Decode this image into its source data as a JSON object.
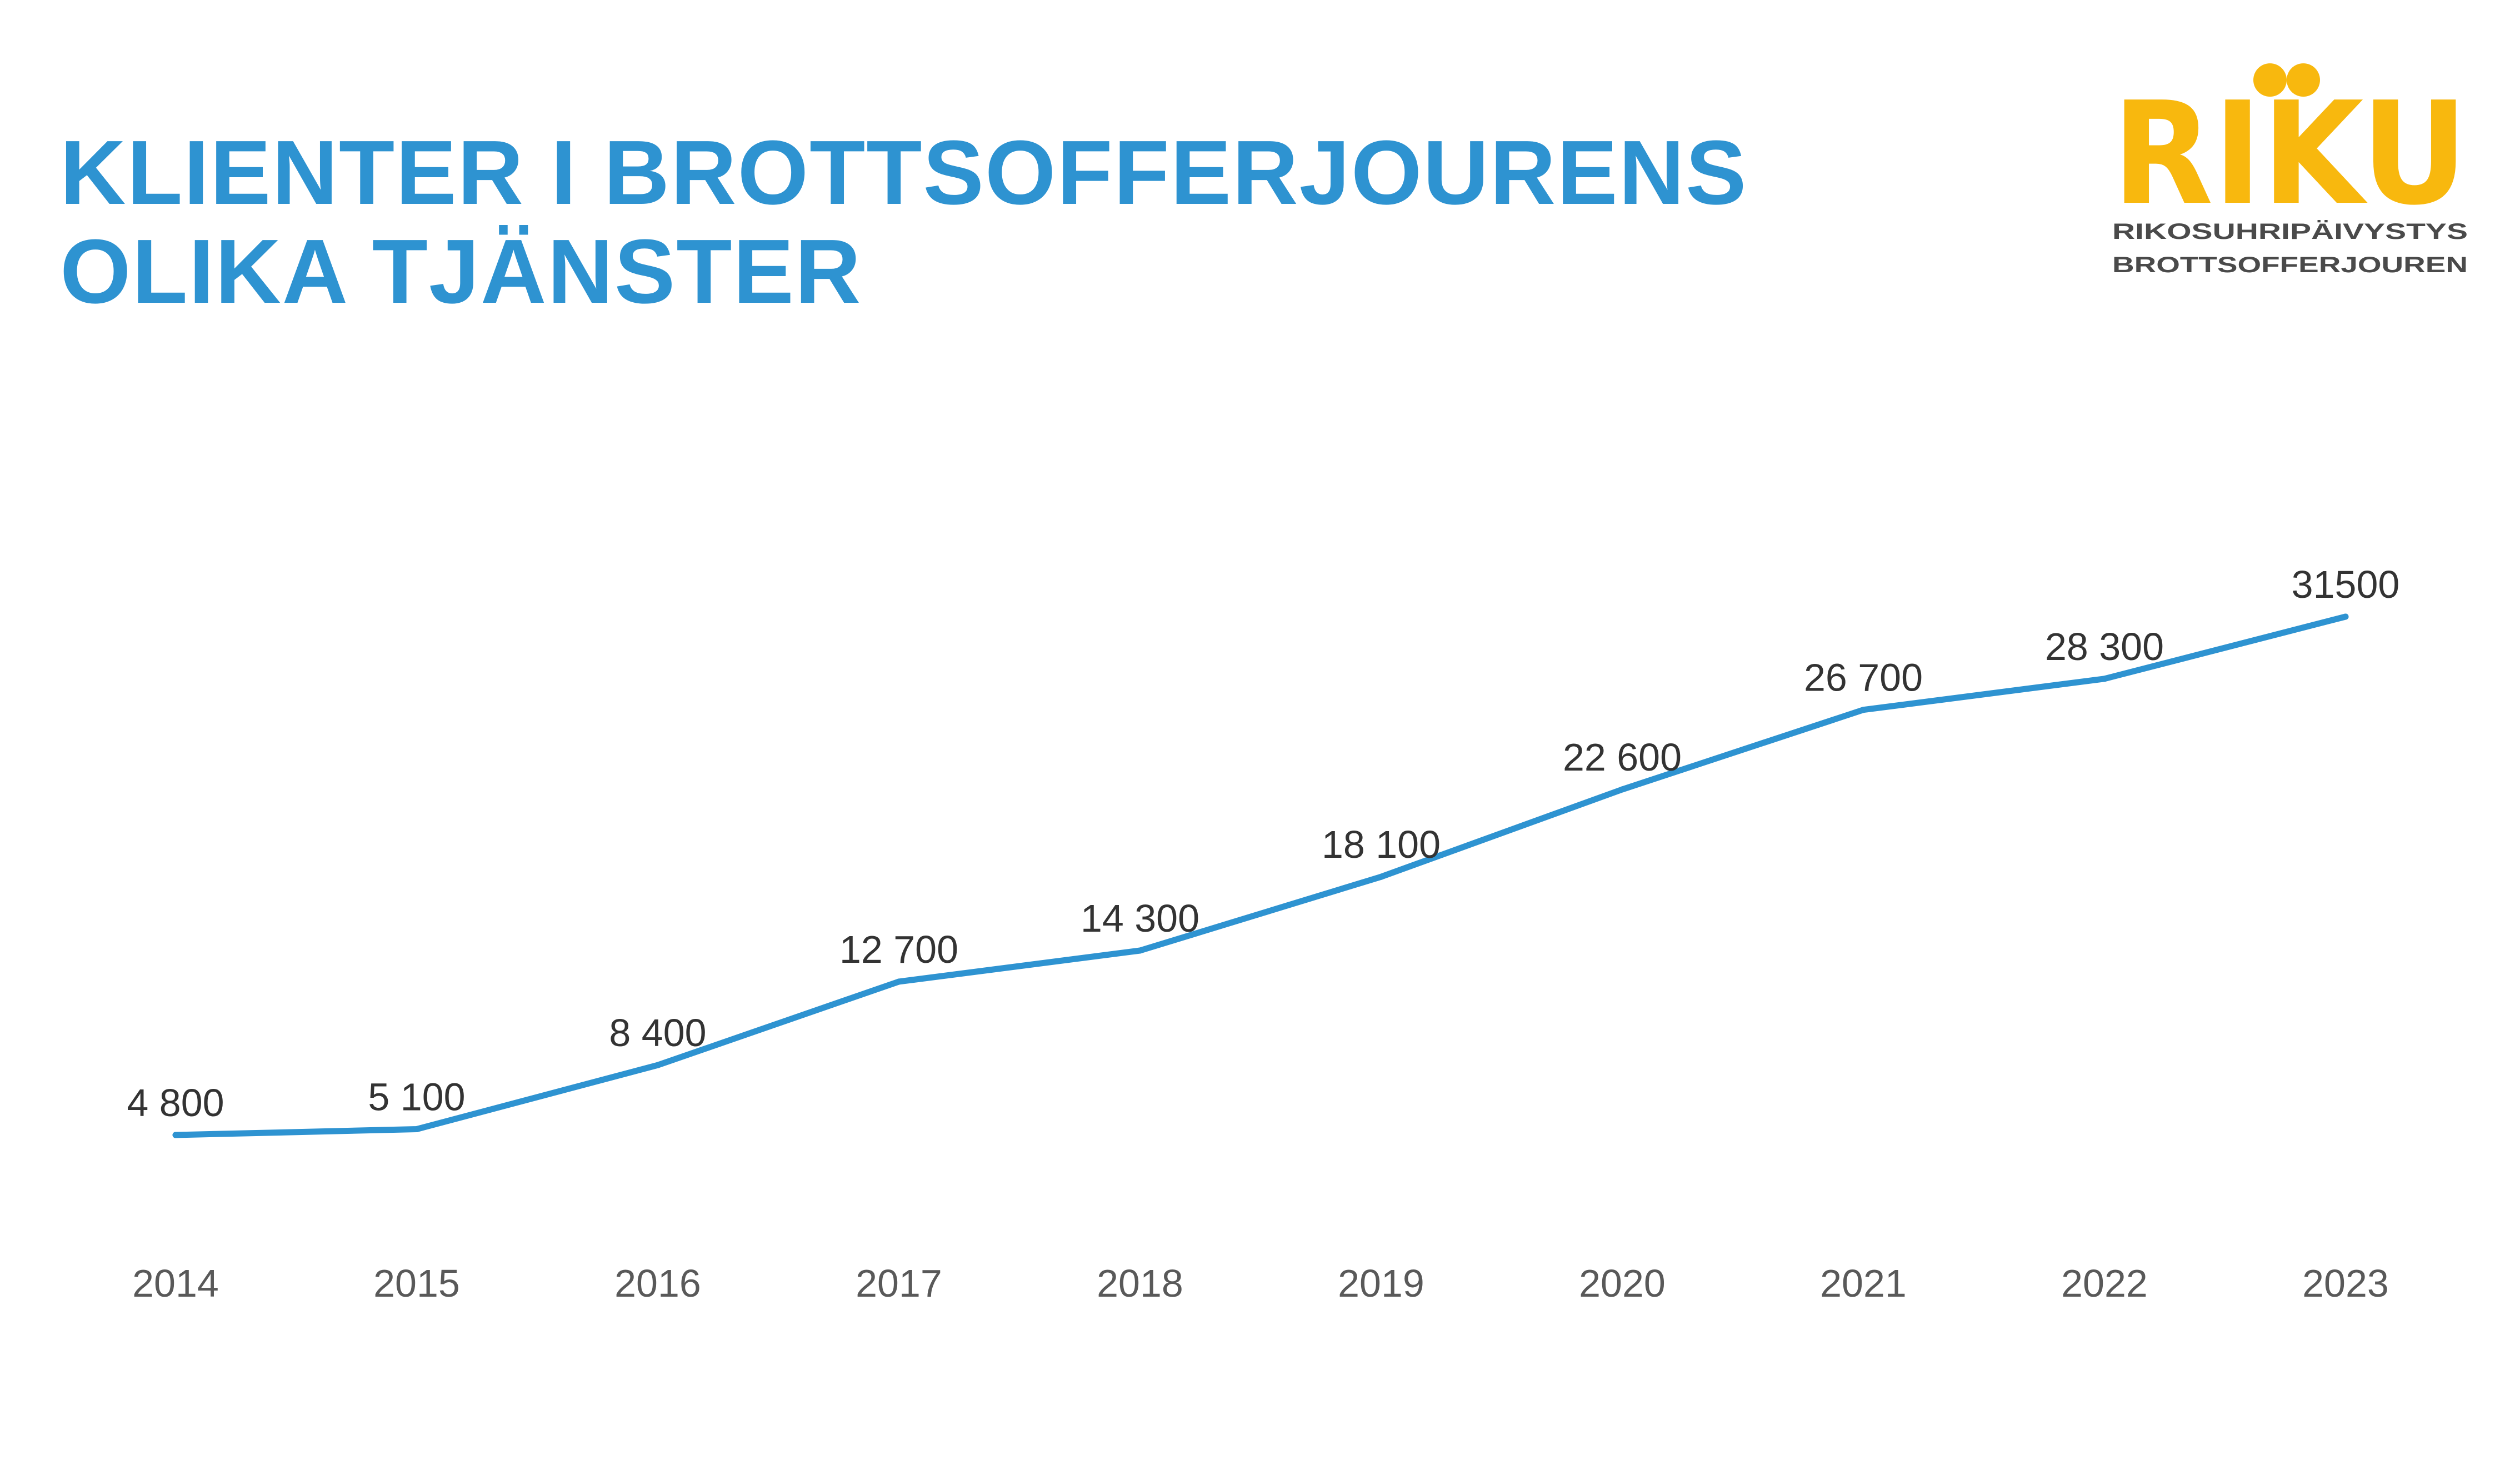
{
  "title": {
    "line1": "KLIENTER I BROTTSOFFERJOURENS",
    "line2": "OLIKA TJÄNSTER"
  },
  "logo": {
    "wordmark": "RIKU",
    "subtitle_fi": "RIKOSUHRIPÄIVYSTYS",
    "subtitle_sv": "BROTTSOFFERJOUREN"
  },
  "colors": {
    "title": "#2e93d1",
    "line": "#2e93d1",
    "logo": "#f8b80e",
    "logo_text": "#4a4a4a"
  },
  "chart_data": {
    "type": "line",
    "title": "KLIENTER I BROTTSOFFERJOURENS OLIKA TJÄNSTER",
    "categories": [
      "2014",
      "2015",
      "2016",
      "2017",
      "2018",
      "2019",
      "2020",
      "2021",
      "2022",
      "2023"
    ],
    "series": [
      {
        "values": [
          4800,
          5100,
          8400,
          12700,
          14300,
          18100,
          22600,
          26700,
          28300,
          31500
        ],
        "labels": [
          "4 800",
          "5 100",
          "8 400",
          "12 700",
          "14 300",
          "18 100",
          "22 600",
          "26 700",
          "28 300",
          "31500"
        ]
      }
    ],
    "grid": false,
    "legend": "none",
    "y_axis_visible": false
  }
}
